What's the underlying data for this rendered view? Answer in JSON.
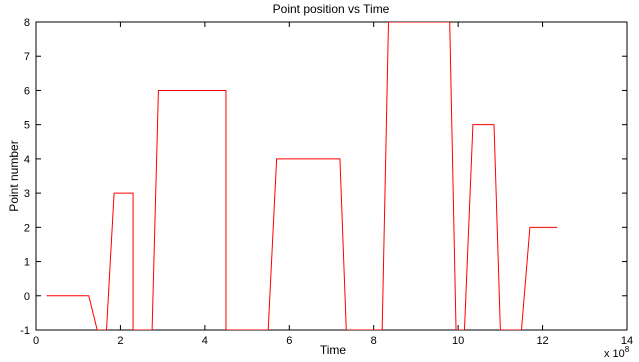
{
  "chart_data": {
    "type": "line",
    "title": "Point position vs Time",
    "xlabel": "Time",
    "ylabel": "Point number",
    "x_exponent_label": "x 10",
    "x_exponent_power": "8",
    "xlim": [
      0,
      14
    ],
    "ylim": [
      -1,
      8
    ],
    "x_ticks": [
      "0",
      "2",
      "4",
      "6",
      "8",
      "10",
      "12",
      "14"
    ],
    "y_ticks": [
      "-1",
      "0",
      "1",
      "2",
      "3",
      "4",
      "5",
      "6",
      "7",
      "8"
    ],
    "grid": false,
    "box": true,
    "series": [
      {
        "color": "#ff0000",
        "x": [
          0.25,
          1.25,
          1.45,
          1.67,
          1.85,
          2.3,
          2.3,
          2.75,
          2.9,
          4.5,
          4.5,
          5.5,
          5.7,
          7.2,
          7.35,
          8.2,
          8.35,
          9.8,
          9.95,
          10.15,
          10.35,
          10.85,
          11.0,
          11.5,
          11.7,
          12.35
        ],
        "y": [
          0,
          0,
          -1,
          -1,
          3,
          3,
          -1,
          -1,
          6,
          6,
          -1,
          -1,
          4,
          4,
          -1,
          -1,
          8,
          8,
          -1,
          -1,
          5,
          5,
          -1,
          -1,
          2,
          2
        ]
      }
    ]
  }
}
